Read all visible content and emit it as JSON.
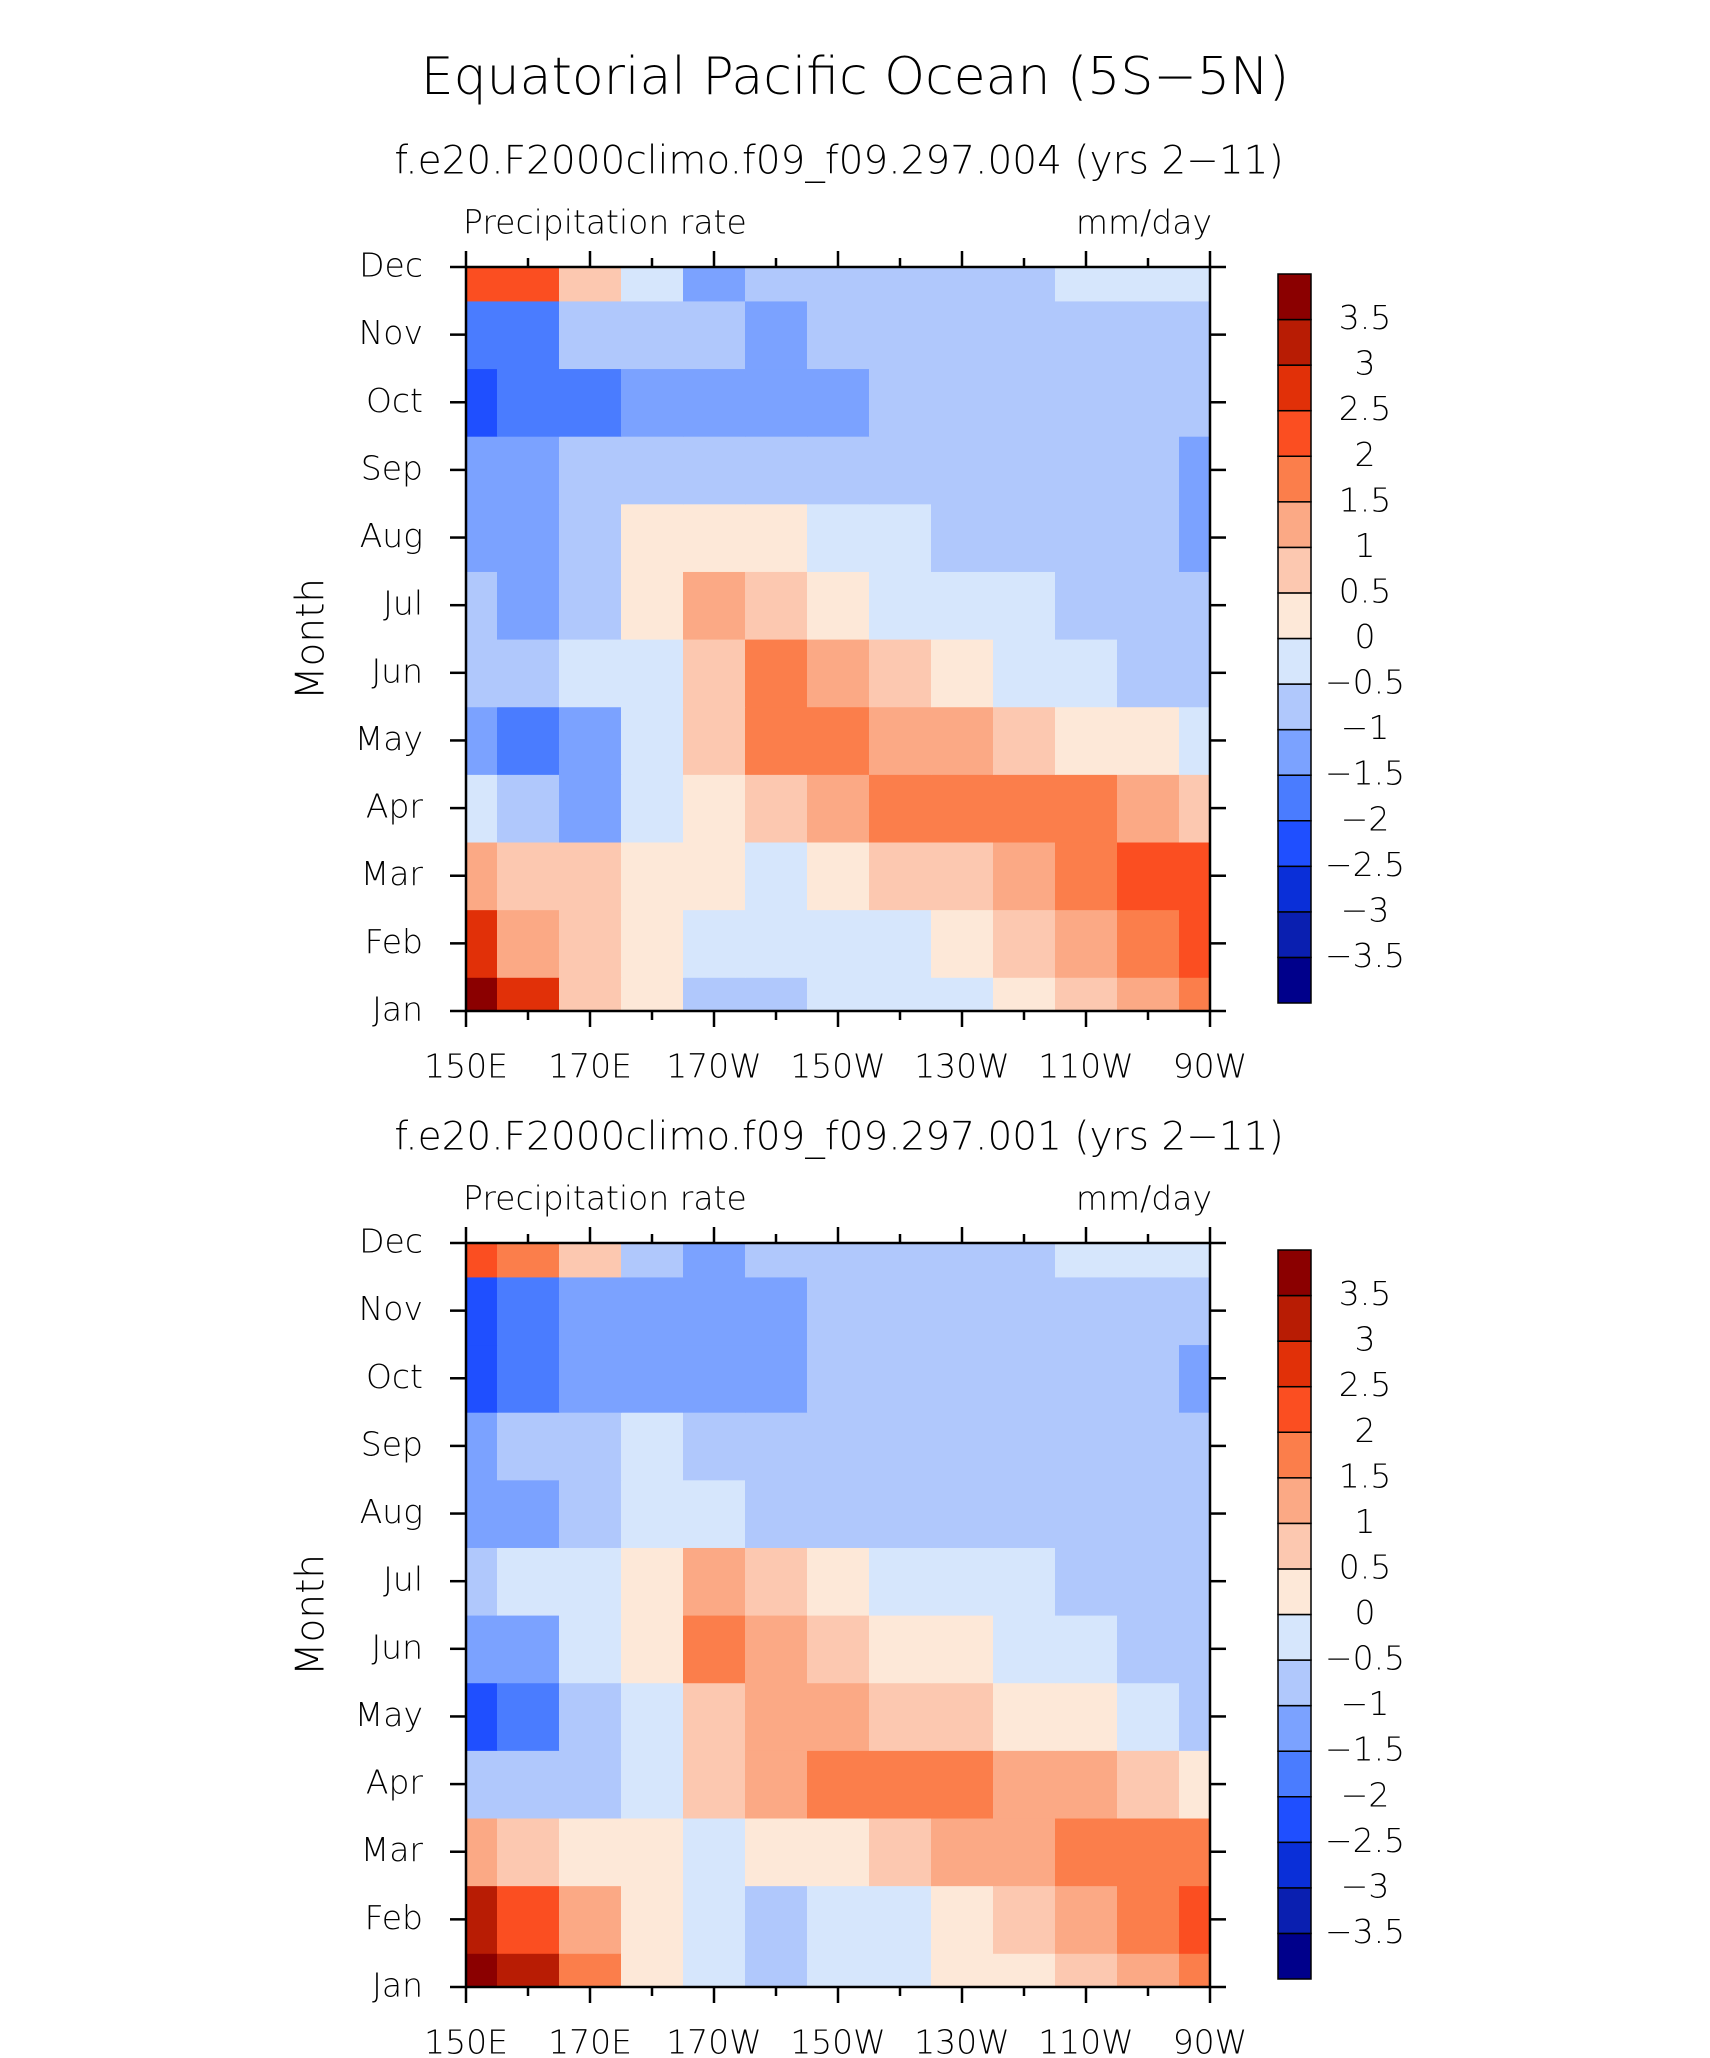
{
  "title": "Equatorial Pacific Ocean (5S−5N)",
  "chart_data": [
    {
      "type": "contour",
      "title": "f.e20.F2000climo.f09_f09.297.004 (yrs 2−11)",
      "left_label": "Precipitation rate",
      "right_label": "mm/day",
      "ylabel": "Month",
      "y": [
        "Jan",
        "Feb",
        "Mar",
        "Apr",
        "May",
        "Jun",
        "Jul",
        "Aug",
        "Sep",
        "Oct",
        "Nov",
        "Dec"
      ],
      "x": [
        150,
        160,
        170,
        180,
        190,
        200,
        210,
        220,
        230,
        240,
        250,
        260,
        270
      ],
      "xlim": [
        150,
        270
      ],
      "xticks": [
        {
          "value": 150,
          "label": "150E"
        },
        {
          "value": 170,
          "label": "170E"
        },
        {
          "value": 190,
          "label": "170W"
        },
        {
          "value": 210,
          "label": "150W"
        },
        {
          "value": 230,
          "label": "130W"
        },
        {
          "value": 250,
          "label": "110W"
        },
        {
          "value": 270,
          "label": "90W"
        }
      ],
      "xminorticks": [
        160,
        180,
        200,
        220,
        240,
        260
      ],
      "z": [
        [
          3.8,
          2.5,
          0.8,
          0,
          -0.7,
          -0.7,
          -0.3,
          -0.2,
          -0.2,
          0.2,
          0.5,
          1.0,
          1.8
        ],
        [
          2.5,
          1.2,
          0.6,
          0.2,
          -0.3,
          -0.5,
          -0.3,
          -0.2,
          0.3,
          0.6,
          1.0,
          1.5,
          2.2
        ],
        [
          1.2,
          0.6,
          0.6,
          0.2,
          0,
          -0.1,
          0.2,
          0.5,
          0.8,
          1.2,
          1.5,
          2.0,
          2.3
        ],
        [
          -0.3,
          -0.6,
          -1.2,
          -0.4,
          0.3,
          0.8,
          1.2,
          1.6,
          1.7,
          1.7,
          1.5,
          1.0,
          0.5
        ],
        [
          -1.2,
          -1.6,
          -1.2,
          -0.3,
          0.6,
          1.6,
          1.6,
          1.3,
          1.0,
          0.6,
          0.3,
          0,
          -0.5
        ],
        [
          -0.8,
          -0.6,
          -0.4,
          -0.2,
          0.8,
          1.6,
          1.2,
          0.5,
          0.2,
          -0.1,
          -0.3,
          -0.6,
          -0.8
        ],
        [
          -0.8,
          -1.2,
          -0.8,
          0,
          1.1,
          0.8,
          0.4,
          -0.1,
          -0.2,
          -0.4,
          -0.6,
          -0.8,
          -1.0
        ],
        [
          -1.2,
          -1.2,
          -0.8,
          0.2,
          0.3,
          0.1,
          -0.3,
          -0.5,
          -0.6,
          -0.7,
          -0.9,
          -1.0,
          -1.2
        ],
        [
          -1.3,
          -1.3,
          -0.8,
          -0.6,
          -0.7,
          -0.8,
          -0.8,
          -0.8,
          -0.9,
          -0.9,
          -0.9,
          -0.9,
          -1.2
        ],
        [
          -2.4,
          -2.0,
          -1.6,
          -1.2,
          -1.2,
          -1.3,
          -1.2,
          -0.8,
          -0.8,
          -0.8,
          -0.8,
          -0.8,
          -1.0
        ],
        [
          -1.8,
          -1.6,
          -1.0,
          -0.8,
          -1.0,
          -1.1,
          -0.8,
          -0.7,
          -0.7,
          -0.7,
          -0.7,
          -0.7,
          -0.8
        ],
        [
          2.3,
          2.0,
          0.8,
          -0.3,
          -1.1,
          -0.9,
          -0.7,
          -0.7,
          -0.7,
          -0.6,
          -0.5,
          -0.3,
          -0.4
        ]
      ],
      "levels": [
        {
          "value": -3.5,
          "label": "−3.5"
        },
        {
          "value": -3,
          "label": "−3"
        },
        {
          "value": -2.5,
          "label": "−2.5"
        },
        {
          "value": -2,
          "label": "−2"
        },
        {
          "value": -1.5,
          "label": "−1.5"
        },
        {
          "value": -1,
          "label": "−1"
        },
        {
          "value": -0.5,
          "label": "−0.5"
        },
        0,
        0.5,
        1,
        1.5,
        2,
        2.5,
        3,
        3.5
      ],
      "colors": [
        "#00008b",
        "#0a1fb0",
        "#0a2fd8",
        "#1f4fff",
        "#4a7cff",
        "#7ba2ff",
        "#b0c8fc",
        "#d6e6fc",
        "#fde8d8",
        "#fcc8b0",
        "#fba985",
        "#fb7e4b",
        "#fb4e21",
        "#e13008",
        "#b81c04",
        "#8b0000"
      ]
    },
    {
      "type": "contour",
      "title": "f.e20.F2000climo.f09_f09.297.001 (yrs 2−11)",
      "left_label": "Precipitation rate",
      "right_label": "mm/day",
      "ylabel": "Month",
      "y": [
        "Jan",
        "Feb",
        "Mar",
        "Apr",
        "May",
        "Jun",
        "Jul",
        "Aug",
        "Sep",
        "Oct",
        "Nov",
        "Dec"
      ],
      "x": [
        150,
        160,
        170,
        180,
        190,
        200,
        210,
        220,
        230,
        240,
        250,
        260,
        270
      ],
      "xlim": [
        150,
        270
      ],
      "xticks": [
        {
          "value": 150,
          "label": "150E"
        },
        {
          "value": 170,
          "label": "170E"
        },
        {
          "value": 190,
          "label": "170W"
        },
        {
          "value": 210,
          "label": "150W"
        },
        {
          "value": 230,
          "label": "130W"
        },
        {
          "value": 250,
          "label": "110W"
        },
        {
          "value": 270,
          "label": "90W"
        }
      ],
      "xminorticks": [
        160,
        180,
        200,
        220,
        240,
        260
      ],
      "z": [
        [
          3.8,
          3.0,
          1.5,
          0.4,
          -0.3,
          -0.6,
          -0.3,
          -0.2,
          0,
          0.2,
          0.6,
          1.2,
          1.8
        ],
        [
          3.0,
          2.0,
          1.0,
          0.3,
          -0.4,
          -0.6,
          -0.4,
          -0.1,
          0.4,
          0.8,
          1.2,
          1.6,
          2.0
        ],
        [
          1.2,
          0.7,
          0.3,
          0,
          -0.1,
          0,
          0.3,
          0.7,
          1.1,
          1.4,
          1.6,
          1.7,
          1.8
        ],
        [
          -0.8,
          -1.0,
          -0.6,
          -0.2,
          0.5,
          1.3,
          1.6,
          1.6,
          1.6,
          1.3,
          1.0,
          0.7,
          0.4
        ],
        [
          -2.2,
          -1.6,
          -0.9,
          -0.3,
          0.8,
          1.1,
          1.0,
          0.8,
          0.5,
          0.3,
          0,
          -0.3,
          -0.6
        ],
        [
          -1.5,
          -1.2,
          -0.5,
          0.3,
          1.7,
          1.2,
          0.6,
          0.3,
          0,
          -0.2,
          -0.4,
          -0.6,
          -0.8
        ],
        [
          -0.6,
          -0.5,
          -0.3,
          0.3,
          1.2,
          0.5,
          0,
          -0.3,
          -0.4,
          -0.5,
          -0.6,
          -0.7,
          -0.8
        ],
        [
          -1.2,
          -1.1,
          -0.6,
          -0.2,
          -0.3,
          -0.6,
          -0.8,
          -0.8,
          -0.8,
          -0.9,
          -0.9,
          -1.0,
          -1.0
        ],
        [
          -1.2,
          -1.0,
          -0.6,
          -0.5,
          -0.7,
          -0.9,
          -0.9,
          -0.8,
          -0.8,
          -0.8,
          -0.8,
          -0.9,
          -1.0
        ],
        [
          -2.2,
          -1.9,
          -1.4,
          -1.1,
          -1.2,
          -1.2,
          -0.8,
          -0.8,
          -0.8,
          -0.8,
          -0.8,
          -0.9,
          -1.2
        ],
        [
          -2.2,
          -1.8,
          -1.3,
          -1.2,
          -1.3,
          -1.1,
          -0.8,
          -0.7,
          -0.7,
          -0.7,
          -0.6,
          -0.6,
          -0.8
        ],
        [
          2.0,
          1.6,
          0.6,
          -0.6,
          -1.2,
          -0.8,
          -0.7,
          -0.7,
          -0.7,
          -0.6,
          -0.5,
          -0.3,
          -0.4
        ]
      ],
      "levels": [
        {
          "value": -3.5,
          "label": "−3.5"
        },
        {
          "value": -3,
          "label": "−3"
        },
        {
          "value": -2.5,
          "label": "−2.5"
        },
        {
          "value": -2,
          "label": "−2"
        },
        {
          "value": -1.5,
          "label": "−1.5"
        },
        {
          "value": -1,
          "label": "−1"
        },
        {
          "value": -0.5,
          "label": "−0.5"
        },
        0,
        0.5,
        1,
        1.5,
        2,
        2.5,
        3,
        3.5
      ],
      "colors": [
        "#00008b",
        "#0a1fb0",
        "#0a2fd8",
        "#1f4fff",
        "#4a7cff",
        "#7ba2ff",
        "#b0c8fc",
        "#d6e6fc",
        "#fde8d8",
        "#fcc8b0",
        "#fba985",
        "#fb7e4b",
        "#fb4e21",
        "#e13008",
        "#b81c04",
        "#8b0000"
      ]
    }
  ]
}
